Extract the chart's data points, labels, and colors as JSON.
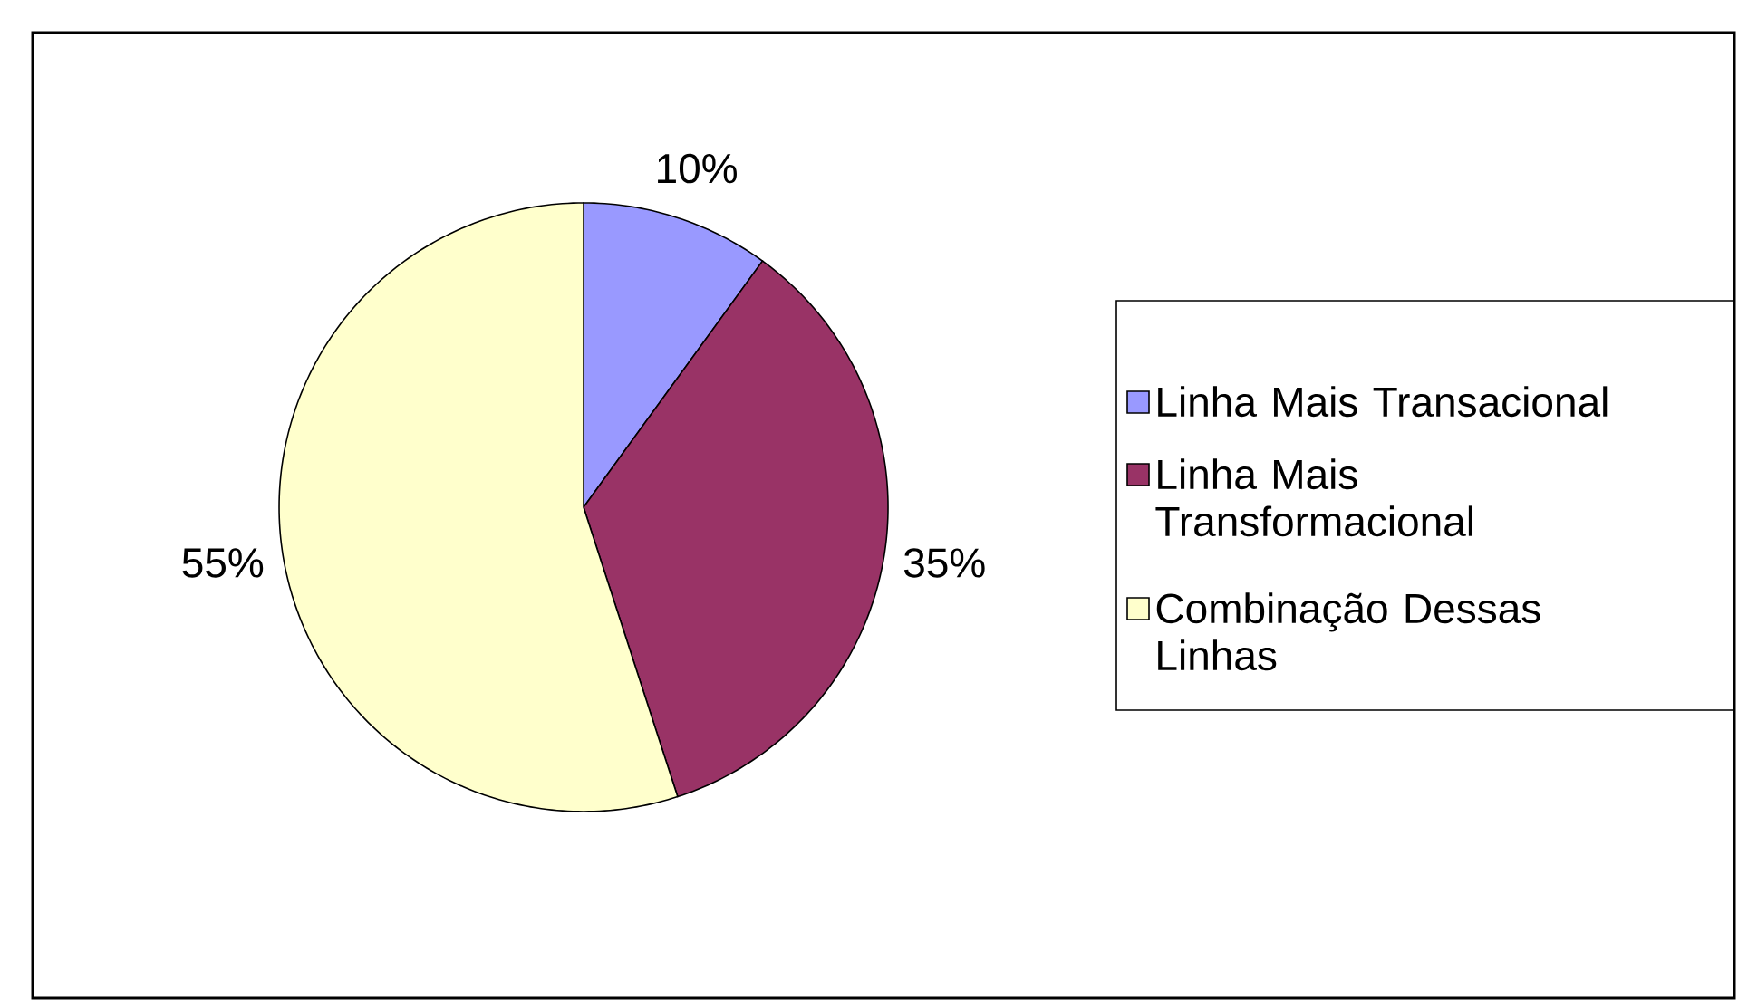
{
  "chart_data": {
    "type": "pie",
    "categories": [
      "Linha Mais Transacional",
      "Linha Mais Transformacional",
      "Combinação Dessas Linhas"
    ],
    "values": [
      10,
      35,
      55
    ],
    "colors": [
      "#9999ff",
      "#993366",
      "#ffffcc"
    ],
    "value_labels": [
      "10%",
      "35%",
      "55%"
    ],
    "legend": "right"
  }
}
